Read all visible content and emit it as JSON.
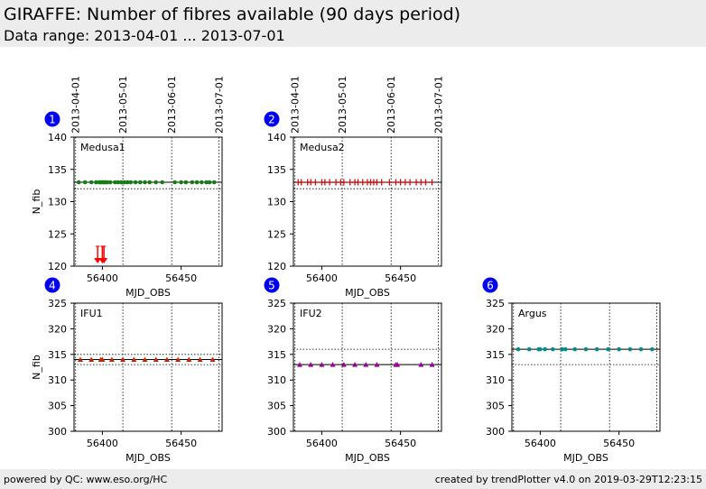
{
  "header": {
    "title": "GIRAFFE: Number of fibres available (90 days period)",
    "subtitle": "Data range: 2013-04-01 ... 2013-07-01"
  },
  "footer": {
    "left": "powered by QC: www.eso.org/HC",
    "right": "created by trendPlotter v4.0 on 2019-03-29T12:23:15"
  },
  "colors": {
    "medusa1": "#1a7a1a",
    "medusa2": "#cc1111",
    "ifu1": "#cc2200",
    "ifu2": "#990099",
    "argus": "#008b8b",
    "outlier": "#ff0000",
    "badge": "#0000ee"
  },
  "chart_data": [
    {
      "id": "1",
      "type": "scatter",
      "label": "Medusa1",
      "marker": "circle",
      "color": "#1a7a1a",
      "xlabel": "MJD_OBS",
      "ylabel": "N_fib",
      "xlim": [
        56382,
        56476
      ],
      "ylim": [
        120,
        140
      ],
      "yticks": [
        120,
        125,
        130,
        135,
        140
      ],
      "xticks": [
        56400,
        56450
      ],
      "date_ticks": [
        {
          "x": 56383,
          "label": "2013-04-01"
        },
        {
          "x": 56413,
          "label": "2013-05-01"
        },
        {
          "x": 56444,
          "label": "2013-06-01"
        },
        {
          "x": 56474,
          "label": "2013-07-01"
        }
      ],
      "ref_line": 133,
      "band": [
        132,
        133
      ],
      "x": [
        56385,
        56389,
        56393,
        56396,
        56398,
        56399,
        56400,
        56401,
        56402,
        56403,
        56405,
        56408,
        56410,
        56412,
        56414,
        56416,
        56418,
        56421,
        56424,
        56427,
        56430,
        56434,
        56438,
        56446,
        56450,
        56453,
        56457,
        56460,
        56463,
        56466,
        56468,
        56471
      ],
      "y": [
        133,
        133,
        133,
        133,
        133,
        133,
        133,
        133,
        133,
        133,
        133,
        133,
        133,
        133,
        133,
        133,
        133,
        133,
        133,
        133,
        133,
        133,
        133,
        133,
        133,
        133,
        133,
        133,
        133,
        133,
        133,
        133
      ],
      "outliers_below": [
        56397,
        56400,
        56401
      ]
    },
    {
      "id": "2",
      "type": "scatter",
      "label": "Medusa2",
      "marker": "plus",
      "color": "#cc1111",
      "xlabel": "MJD_OBS",
      "ylabel": "",
      "xlim": [
        56382,
        56476
      ],
      "ylim": [
        120,
        140
      ],
      "yticks": [
        120,
        125,
        130,
        135,
        140
      ],
      "xticks": [
        56400,
        56450
      ],
      "date_ticks": [
        {
          "x": 56383,
          "label": "2013-04-01"
        },
        {
          "x": 56413,
          "label": "2013-05-01"
        },
        {
          "x": 56444,
          "label": "2013-06-01"
        },
        {
          "x": 56474,
          "label": "2013-07-01"
        }
      ],
      "ref_line": 133,
      "band": [
        132,
        133
      ],
      "x": [
        56385,
        56387,
        56391,
        56393,
        56396,
        56400,
        56402,
        56405,
        56409,
        56412,
        56414,
        56418,
        56421,
        56423,
        56426,
        56429,
        56431,
        56433,
        56435,
        56438,
        56443,
        56447,
        56450,
        56453,
        56456,
        56460,
        56463,
        56466,
        56470
      ],
      "y": [
        133,
        133,
        133,
        133,
        133,
        133,
        133,
        133,
        133,
        133,
        133,
        133,
        133,
        133,
        133,
        133,
        133,
        133,
        133,
        133,
        133,
        133,
        133,
        133,
        133,
        133,
        133,
        133,
        133
      ],
      "outliers_below": []
    },
    {
      "id": "4",
      "type": "scatter",
      "label": "IFU1",
      "marker": "triangle",
      "color": "#cc2200",
      "xlabel": "MJD_OBS",
      "ylabel": "N_fib",
      "xlim": [
        56382,
        56476
      ],
      "ylim": [
        300,
        325
      ],
      "yticks": [
        300,
        305,
        310,
        315,
        320,
        325
      ],
      "xticks": [
        56400,
        56450
      ],
      "date_ticks": [],
      "ref_line": 314,
      "band": [
        313,
        315
      ],
      "x": [
        56386,
        56393,
        56399,
        56400,
        56406,
        56413,
        56420,
        56427,
        56434,
        56441,
        56448,
        56455,
        56462,
        56470
      ],
      "y": [
        314,
        314,
        314,
        314,
        314,
        314,
        314,
        314,
        314,
        314,
        314,
        314,
        314,
        314
      ],
      "outliers_below": []
    },
    {
      "id": "5",
      "type": "scatter",
      "label": "IFU2",
      "marker": "triangle",
      "color": "#990099",
      "xlabel": "MJD_OBS",
      "ylabel": "",
      "xlim": [
        56382,
        56476
      ],
      "ylim": [
        300,
        325
      ],
      "yticks": [
        300,
        305,
        310,
        315,
        320,
        325
      ],
      "xticks": [
        56400,
        56450
      ],
      "date_ticks": [],
      "ref_line": 313,
      "band": [
        313,
        316
      ],
      "x": [
        56386,
        56393,
        56400,
        56407,
        56414,
        56421,
        56428,
        56435,
        56447,
        56448,
        56463,
        56470
      ],
      "y": [
        313,
        313,
        313,
        313,
        313,
        313,
        313,
        313,
        313,
        313,
        313,
        313
      ],
      "outliers_below": []
    },
    {
      "id": "6",
      "type": "scatter",
      "label": "Argus",
      "marker": "circle",
      "color": "#008b8b",
      "xlabel": "MJD_OBS",
      "ylabel": "",
      "xlim": [
        56382,
        56476
      ],
      "ylim": [
        300,
        325
      ],
      "yticks": [
        300,
        305,
        310,
        315,
        320,
        325
      ],
      "xticks": [
        56400,
        56450
      ],
      "date_ticks": [],
      "ref_line": 316,
      "band": [
        313,
        316
      ],
      "x": [
        56386,
        56393,
        56399,
        56400,
        56403,
        56408,
        56414,
        56416,
        56422,
        56429,
        56436,
        56443,
        56450,
        56457,
        56464,
        56471
      ],
      "y": [
        316,
        316,
        316,
        316,
        316,
        316,
        316,
        316,
        316,
        316,
        316,
        316,
        316,
        316,
        316,
        316
      ],
      "outliers_below": []
    }
  ]
}
